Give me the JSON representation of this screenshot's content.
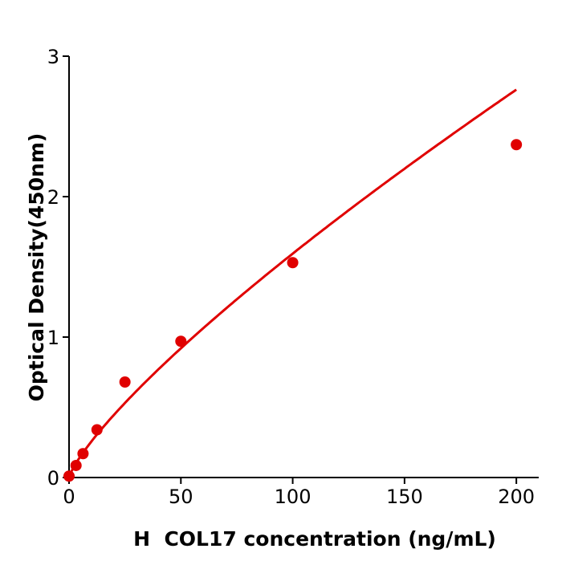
{
  "chart_data": {
    "type": "scatter",
    "title": "",
    "xlabel": "H  COL17 concentration (ng/mL)",
    "ylabel": "Optical Density(450nm)",
    "xlim": [
      0,
      210
    ],
    "ylim": [
      0,
      3
    ],
    "xticks": [
      0,
      50,
      100,
      150,
      200
    ],
    "yticks": [
      0,
      1,
      2,
      3
    ],
    "grid": false,
    "color": "#e00000",
    "series": [
      {
        "x": [
          0,
          3.125,
          6.25,
          12.5,
          25,
          50,
          100,
          200
        ],
        "y": [
          0.01,
          0.086,
          0.17,
          0.34,
          0.68,
          0.97,
          1.53,
          2.37
        ]
      }
    ],
    "fit_curve": true
  }
}
